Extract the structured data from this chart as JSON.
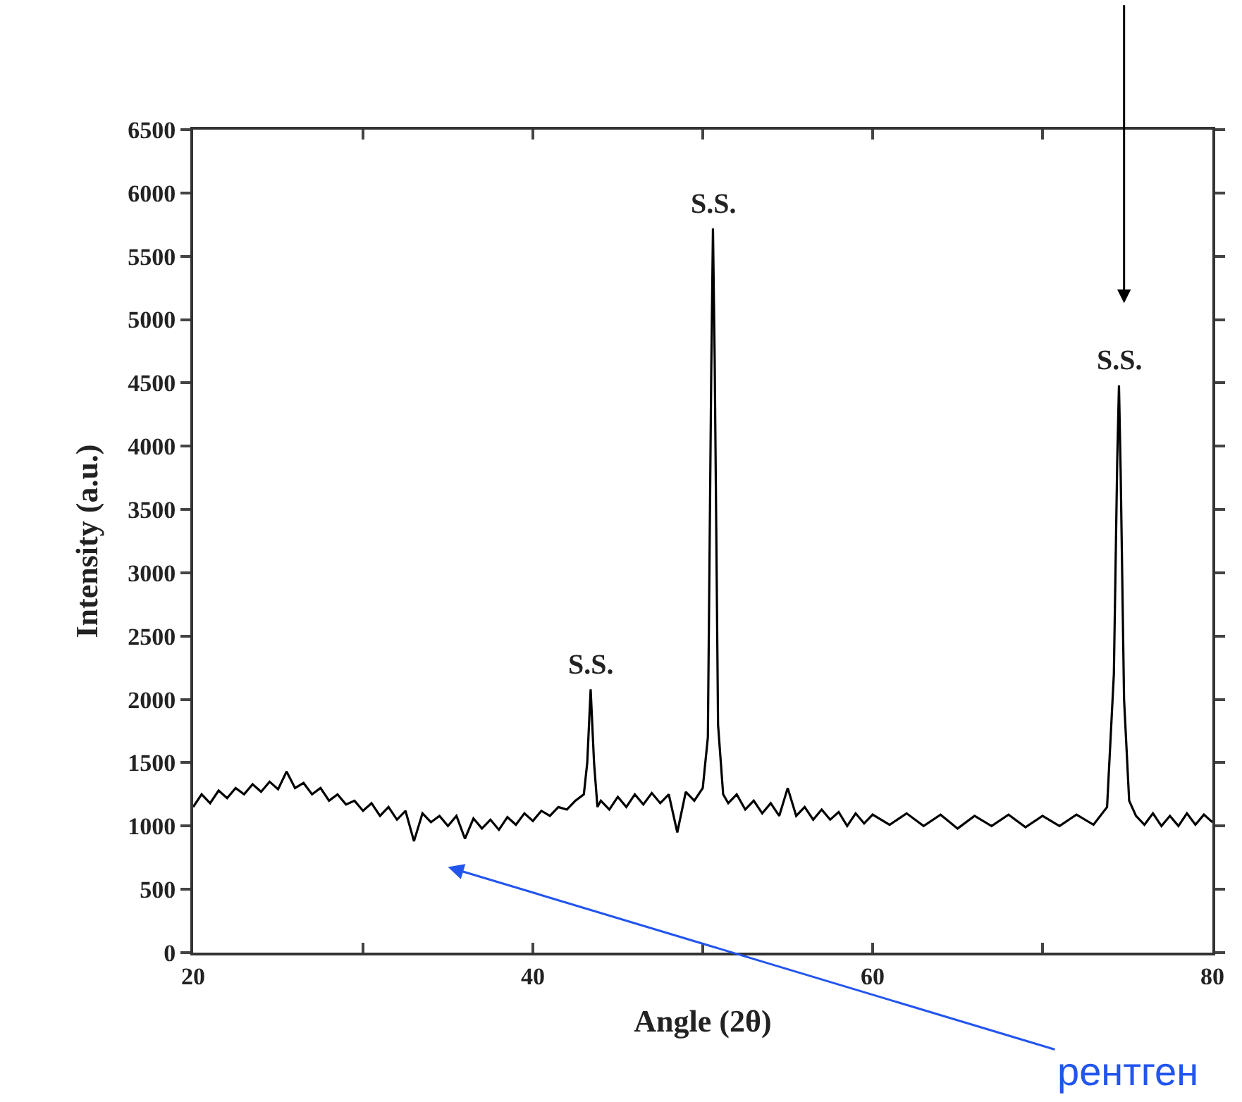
{
  "chart_data": {
    "type": "line",
    "xlabel": "Angle (2θ)",
    "ylabel": "Intensity (a.u.)",
    "x": [
      20,
      20.5,
      21,
      21.5,
      22,
      22.5,
      23,
      23.5,
      24,
      24.5,
      25,
      25.5,
      26,
      26.5,
      27,
      27.5,
      28,
      28.5,
      29,
      29.5,
      30,
      30.5,
      31,
      31.5,
      32,
      32.5,
      33,
      33.5,
      34,
      34.5,
      35,
      35.5,
      36,
      36.5,
      37,
      37.5,
      38,
      38.5,
      39,
      39.5,
      40,
      40.5,
      41,
      41.5,
      42,
      42.5,
      43,
      43.2,
      43.4,
      43.6,
      43.8,
      44,
      44.5,
      45,
      45.5,
      46,
      46.5,
      47,
      47.5,
      48,
      48.5,
      49,
      49.5,
      50,
      50.3,
      50.5,
      50.6,
      50.7,
      50.9,
      51.2,
      51.5,
      52,
      52.5,
      53,
      53.5,
      54,
      54.5,
      55,
      55.5,
      56,
      56.5,
      57,
      57.5,
      58,
      58.5,
      59,
      59.5,
      60,
      61,
      62,
      63,
      64,
      65,
      66,
      67,
      68,
      69,
      70,
      71,
      72,
      73,
      73.8,
      74.2,
      74.4,
      74.5,
      74.6,
      74.8,
      75.1,
      75.5,
      76,
      76.5,
      77,
      77.5,
      78,
      78.5,
      79,
      79.5,
      80
    ],
    "series": [
      {
        "color": "#000000",
        "values": [
          1150,
          1250,
          1180,
          1280,
          1220,
          1300,
          1250,
          1330,
          1270,
          1350,
          1290,
          1430,
          1300,
          1340,
          1250,
          1300,
          1200,
          1250,
          1170,
          1200,
          1120,
          1180,
          1080,
          1150,
          1050,
          1120,
          880,
          1100,
          1030,
          1080,
          1000,
          1080,
          900,
          1060,
          980,
          1050,
          970,
          1070,
          1010,
          1100,
          1040,
          1120,
          1080,
          1150,
          1130,
          1200,
          1250,
          1500,
          2080,
          1500,
          1150,
          1200,
          1130,
          1230,
          1150,
          1250,
          1170,
          1260,
          1180,
          1250,
          950,
          1270,
          1200,
          1300,
          1700,
          4600,
          5720,
          4700,
          1800,
          1250,
          1180,
          1250,
          1130,
          1200,
          1100,
          1180,
          1080,
          1300,
          1080,
          1150,
          1050,
          1130,
          1050,
          1110,
          1000,
          1100,
          1020,
          1090,
          1010,
          1100,
          1000,
          1090,
          980,
          1080,
          1000,
          1090,
          990,
          1080,
          1000,
          1090,
          1010,
          1150,
          2200,
          3900,
          4480,
          3800,
          2000,
          1200,
          1080,
          1010,
          1100,
          1000,
          1080,
          1000,
          1100,
          1010,
          1090,
          1030
        ]
      }
    ],
    "xlim": [
      20,
      80
    ],
    "xticks": [
      20,
      {
        "value": 30,
        "label": null
      },
      40,
      {
        "value": 50,
        "label": null
      },
      60,
      {
        "value": 70,
        "label": null
      },
      80
    ],
    "ylim": [
      0,
      6500
    ],
    "yticks": [
      0,
      500,
      1000,
      1500,
      2000,
      2500,
      3000,
      3500,
      4000,
      4500,
      5000,
      5500,
      6000,
      6500
    ],
    "marker": "none",
    "line_style": "solid",
    "annotations": [
      {
        "text": "S.S.",
        "x": 43.4,
        "y": 2080
      },
      {
        "text": "S.S.",
        "x": 50.6,
        "y": 5720
      },
      {
        "text": "S.S.",
        "x": 74.5,
        "y": 4480
      },
      "рентген"
    ]
  }
}
